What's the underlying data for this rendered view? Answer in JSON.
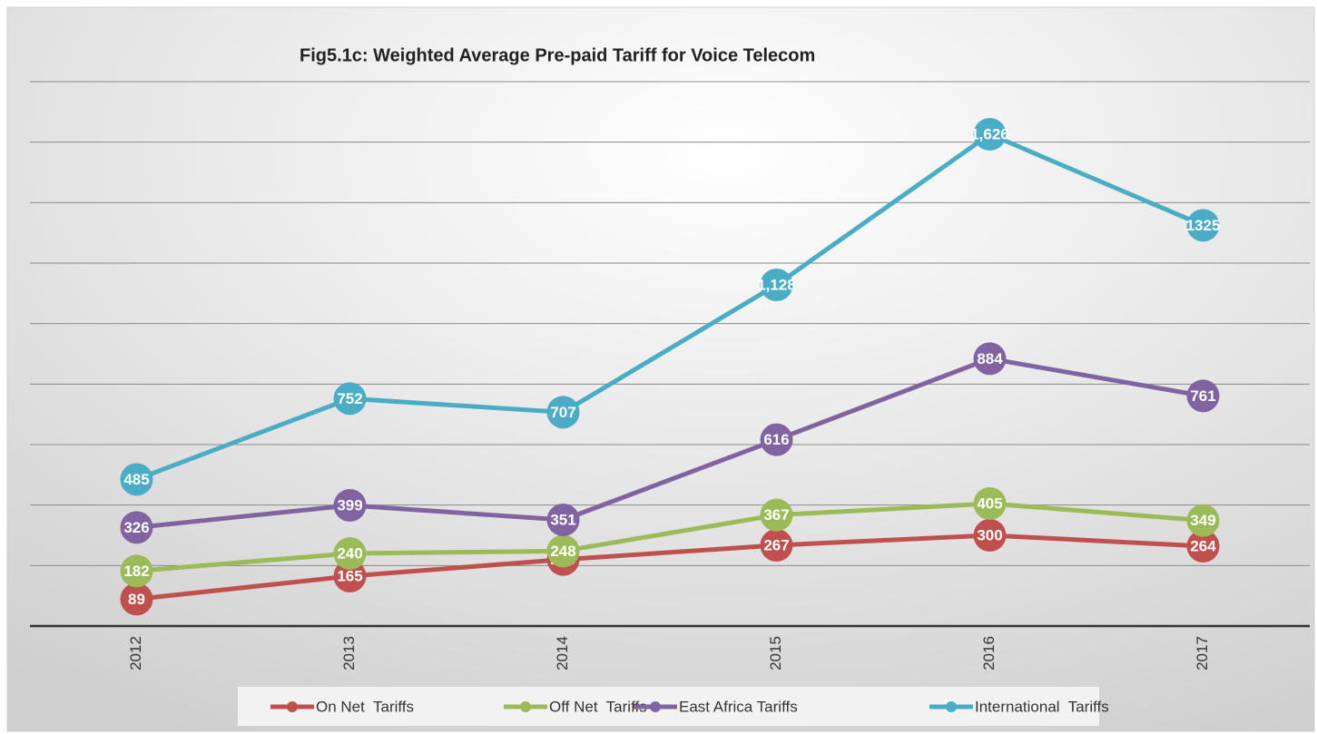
{
  "chart_data": {
    "type": "line",
    "title": "Fig5.1c: Weighted Average Pre-paid Tariff for Voice Telecom",
    "categories": [
      "2012",
      "2013",
      "2014",
      "2015",
      "2016",
      "2017"
    ],
    "series": [
      {
        "name": "On Net  Tariffs",
        "color": "#c0504d",
        "values": [
          89,
          165,
          220,
          267,
          300,
          264
        ]
      },
      {
        "name": "Off Net  Tariffs",
        "color": "#9bbb59",
        "values": [
          182,
          240,
          248,
          367,
          405,
          349
        ]
      },
      {
        "name": "East Africa Tariffs",
        "color": "#8064a2",
        "values": [
          326,
          399,
          351,
          616,
          884,
          761
        ]
      },
      {
        "name": "International  Tariffs",
        "color": "#4bacc6",
        "values": [
          485,
          752,
          707,
          1128,
          1626,
          1325
        ],
        "value_labels": [
          "485",
          "752",
          "707",
          "1,128",
          "1,626",
          "1325"
        ]
      }
    ],
    "ylim": [
      0,
      1800
    ],
    "yticks": [
      0,
      200,
      400,
      600,
      800,
      1000,
      1200,
      1400,
      1600,
      1800
    ],
    "grid": true,
    "legend": "bottom"
  }
}
